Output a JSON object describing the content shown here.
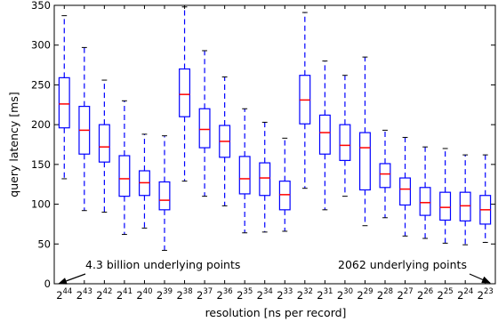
{
  "chart_data": {
    "type": "box",
    "xlabel": "resolution [ns per record]",
    "ylabel": "query latency [ms]",
    "ylim": [
      0,
      350
    ],
    "yticks": [
      0,
      50,
      100,
      150,
      200,
      250,
      300,
      350
    ],
    "grid": false,
    "categories": [
      {
        "base": "2",
        "exp": "44"
      },
      {
        "base": "2",
        "exp": "43"
      },
      {
        "base": "2",
        "exp": "42"
      },
      {
        "base": "2",
        "exp": "41"
      },
      {
        "base": "2",
        "exp": "40"
      },
      {
        "base": "2",
        "exp": "39"
      },
      {
        "base": "2",
        "exp": "38"
      },
      {
        "base": "2",
        "exp": "37"
      },
      {
        "base": "2",
        "exp": "36"
      },
      {
        "base": "2",
        "exp": "35"
      },
      {
        "base": "2",
        "exp": "34"
      },
      {
        "base": "2",
        "exp": "33"
      },
      {
        "base": "2",
        "exp": "32"
      },
      {
        "base": "2",
        "exp": "31"
      },
      {
        "base": "2",
        "exp": "30"
      },
      {
        "base": "2",
        "exp": "29"
      },
      {
        "base": "2",
        "exp": "28"
      },
      {
        "base": "2",
        "exp": "27"
      },
      {
        "base": "2",
        "exp": "26"
      },
      {
        "base": "2",
        "exp": "25"
      },
      {
        "base": "2",
        "exp": "24"
      },
      {
        "base": "2",
        "exp": "23"
      }
    ],
    "boxes": [
      {
        "whisker_low": 132,
        "q1": 196,
        "median": 226,
        "q3": 259,
        "whisker_high": 337
      },
      {
        "whisker_low": 92,
        "q1": 163,
        "median": 193,
        "q3": 223,
        "whisker_high": 297
      },
      {
        "whisker_low": 90,
        "q1": 153,
        "median": 172,
        "q3": 200,
        "whisker_high": 256
      },
      {
        "whisker_low": 62,
        "q1": 110,
        "median": 132,
        "q3": 161,
        "whisker_high": 230
      },
      {
        "whisker_low": 70,
        "q1": 111,
        "median": 127,
        "q3": 142,
        "whisker_high": 188
      },
      {
        "whisker_low": 42,
        "q1": 93,
        "median": 105,
        "q3": 128,
        "whisker_high": 186
      },
      {
        "whisker_low": 129,
        "q1": 210,
        "median": 238,
        "q3": 270,
        "whisker_high": 348
      },
      {
        "whisker_low": 110,
        "q1": 171,
        "median": 194,
        "q3": 220,
        "whisker_high": 293
      },
      {
        "whisker_low": 98,
        "q1": 159,
        "median": 179,
        "q3": 199,
        "whisker_high": 260
      },
      {
        "whisker_low": 64,
        "q1": 113,
        "median": 132,
        "q3": 160,
        "whisker_high": 220
      },
      {
        "whisker_low": 65,
        "q1": 111,
        "median": 133,
        "q3": 152,
        "whisker_high": 203
      },
      {
        "whisker_low": 66,
        "q1": 93,
        "median": 112,
        "q3": 129,
        "whisker_high": 183
      },
      {
        "whisker_low": 120,
        "q1": 201,
        "median": 231,
        "q3": 262,
        "whisker_high": 341
      },
      {
        "whisker_low": 93,
        "q1": 163,
        "median": 190,
        "q3": 212,
        "whisker_high": 280
      },
      {
        "whisker_low": 110,
        "q1": 155,
        "median": 174,
        "q3": 200,
        "whisker_high": 262
      },
      {
        "whisker_low": 73,
        "q1": 118,
        "median": 171,
        "q3": 190,
        "whisker_high": 285
      },
      {
        "whisker_low": 83,
        "q1": 121,
        "median": 138,
        "q3": 151,
        "whisker_high": 193
      },
      {
        "whisker_low": 60,
        "q1": 99,
        "median": 119,
        "q3": 133,
        "whisker_high": 184
      },
      {
        "whisker_low": 57,
        "q1": 86,
        "median": 102,
        "q3": 121,
        "whisker_high": 172
      },
      {
        "whisker_low": 51,
        "q1": 80,
        "median": 96,
        "q3": 115,
        "whisker_high": 170
      },
      {
        "whisker_low": 49,
        "q1": 79,
        "median": 98,
        "q3": 115,
        "whisker_high": 162
      },
      {
        "whisker_low": 52,
        "q1": 75,
        "median": 93,
        "q3": 111,
        "whisker_high": 162
      }
    ],
    "annotations": [
      {
        "text": "4.3 billion underlying points",
        "points_to": "2^44"
      },
      {
        "text": "2062 underlying points",
        "points_to": "2^23"
      }
    ],
    "colors": {
      "box": "#0000ff",
      "median": "#ff0000",
      "axis": "#000000"
    }
  }
}
